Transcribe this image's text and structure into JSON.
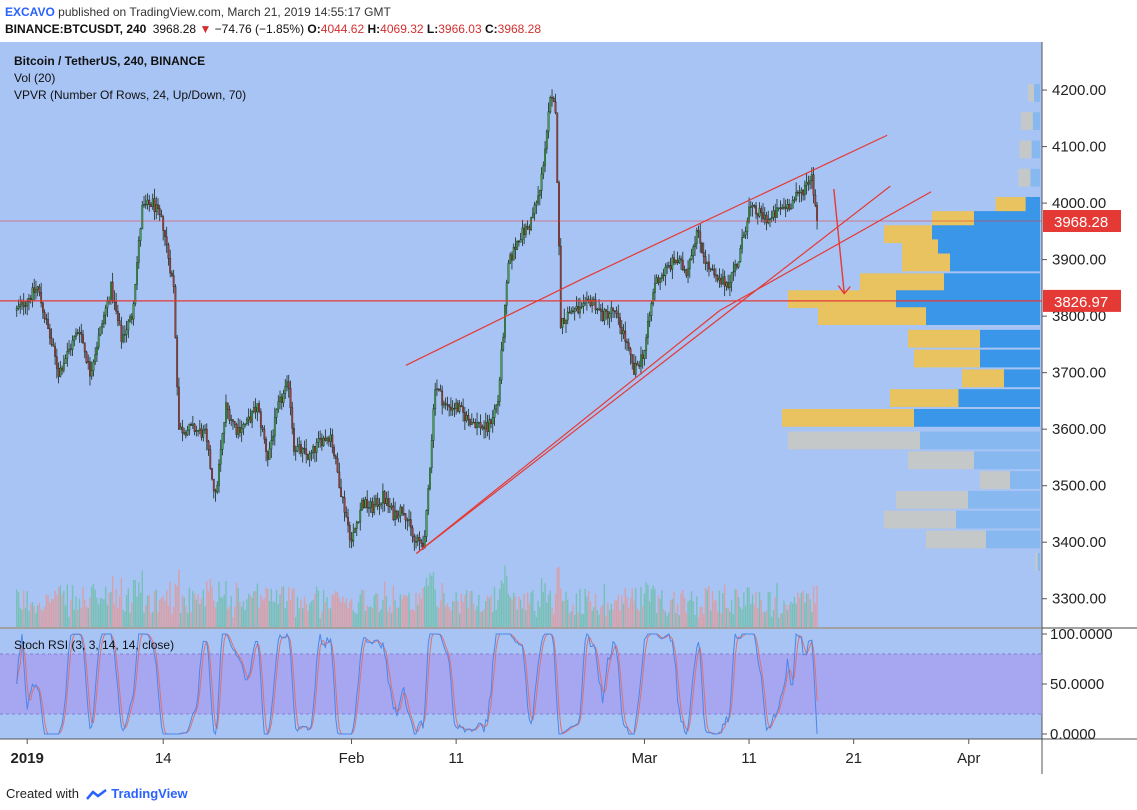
{
  "header": {
    "publisher": "EXCAVO",
    "published_text": "published on TradingView.com, March 21, 2019 14:55:17 GMT",
    "symbol": "BINANCE:BTCUSDT, 240",
    "last": "3968.28",
    "change_arrow": "▼",
    "change": "−74.76 (−1.85%)",
    "o_label": "O:",
    "o_val": "4044.62",
    "h_label": "H:",
    "h_val": "4069.32",
    "l_label": "L:",
    "l_val": "3966.03",
    "c_label": "C:",
    "c_val": "3968.28"
  },
  "legend": {
    "title": "Bitcoin / TetherUS, 240, BINANCE",
    "vol": "Vol (20)",
    "vpvr": "VPVR (Number Of Rows, 24, Up/Down, 70)",
    "stoch": "Stoch RSI (3, 3, 14, 14, close)"
  },
  "footer": {
    "created_with": "Created with",
    "brand": "TradingView"
  },
  "colors": {
    "background": "#a8c4f4",
    "up": "#3dac4a",
    "down": "#b23a3a",
    "trendline": "#e53935",
    "vpvr_up": "#3a96e8",
    "vpvr_down": "#e8c35f",
    "vpvr_up_outside": "#87b8f0",
    "vpvr_down_outside": "#c5c8c8",
    "rsi_band": "#a79cf0",
    "rsi_k": "#4a87e8",
    "rsi_d": "#e0706e"
  },
  "chart_data": {
    "type": "candlestick",
    "price_axis_ticks": [
      "4200.00",
      "4100.00",
      "4000.00",
      "3900.00",
      "3800.00",
      "3700.00",
      "3600.00",
      "3500.00",
      "3400.00",
      "3300.00"
    ],
    "price_ylim": [
      3250,
      4285
    ],
    "rsi_axis_ticks": [
      "100.0000",
      "50.0000",
      "0.0000"
    ],
    "rsi_ylim": [
      -5,
      105
    ],
    "rsi_band": [
      20,
      80
    ],
    "x_ticks": [
      {
        "label": "2019",
        "day": 1
      },
      {
        "label": "14",
        "day": 14
      },
      {
        "label": "Feb",
        "day": 32
      },
      {
        "label": "11",
        "day": 42
      },
      {
        "label": "Mar",
        "day": 60
      },
      {
        "label": "11",
        "day": 70
      },
      {
        "label": "21",
        "day": 80
      },
      {
        "label": "Apr",
        "day": 91
      }
    ],
    "x_domain_days": [
      -1.6,
      98.0
    ],
    "price_marks": [
      {
        "label": "3968.28",
        "value": 3968.28
      },
      {
        "label": "3826.97",
        "value": 3826.97
      }
    ],
    "anchors": [
      [
        0,
        3810
      ],
      [
        2,
        3850
      ],
      [
        4,
        3700
      ],
      [
        6,
        3780
      ],
      [
        7,
        3700
      ],
      [
        9,
        3850
      ],
      [
        10,
        3760
      ],
      [
        11,
        3800
      ],
      [
        12,
        3990
      ],
      [
        13,
        4000
      ],
      [
        14,
        3960
      ],
      [
        15,
        3850
      ],
      [
        15.5,
        3600
      ],
      [
        17,
        3600
      ],
      [
        18,
        3590
      ],
      [
        19,
        3480
      ],
      [
        20,
        3640
      ],
      [
        21,
        3600
      ],
      [
        22,
        3610
      ],
      [
        23,
        3640
      ],
      [
        24,
        3550
      ],
      [
        25,
        3640
      ],
      [
        26,
        3680
      ],
      [
        26.5,
        3570
      ],
      [
        28,
        3550
      ],
      [
        29,
        3580
      ],
      [
        30,
        3590
      ],
      [
        31,
        3490
      ],
      [
        32,
        3400
      ],
      [
        33,
        3470
      ],
      [
        34,
        3460
      ],
      [
        35,
        3480
      ],
      [
        36,
        3450
      ],
      [
        37,
        3460
      ],
      [
        38,
        3400
      ],
      [
        39,
        3400
      ],
      [
        40,
        3680
      ],
      [
        41,
        3640
      ],
      [
        42,
        3640
      ],
      [
        43,
        3620
      ],
      [
        44,
        3610
      ],
      [
        45,
        3600
      ],
      [
        46,
        3650
      ],
      [
        47,
        3890
      ],
      [
        48,
        3940
      ],
      [
        49,
        3960
      ],
      [
        50,
        4020
      ],
      [
        51,
        4180
      ],
      [
        51.5,
        4170
      ],
      [
        52,
        3790
      ],
      [
        53,
        3810
      ],
      [
        54,
        3810
      ],
      [
        55,
        3830
      ],
      [
        56,
        3800
      ],
      [
        57,
        3810
      ],
      [
        58,
        3770
      ],
      [
        59,
        3700
      ],
      [
        60,
        3740
      ],
      [
        61,
        3860
      ],
      [
        62,
        3880
      ],
      [
        63,
        3900
      ],
      [
        64,
        3880
      ],
      [
        65,
        3950
      ],
      [
        66,
        3890
      ],
      [
        67,
        3860
      ],
      [
        68,
        3860
      ],
      [
        69,
        3900
      ],
      [
        70,
        3990
      ],
      [
        71,
        3980
      ],
      [
        72,
        3970
      ],
      [
        73,
        3990
      ],
      [
        74,
        4000
      ],
      [
        75,
        4020
      ],
      [
        76,
        4050
      ],
      [
        76.5,
        3968
      ]
    ],
    "trend_lines": [
      {
        "day0": 38.2,
        "v0": 3380,
        "day1": 83.5,
        "v1": 4030
      },
      {
        "day0": 38.2,
        "v0": 3380,
        "day1": 67.2,
        "v1": 3810
      },
      {
        "day0": 67.2,
        "v0": 3810,
        "day1": 87.4,
        "v1": 4020
      },
      {
        "day0": 37.2,
        "v0": 3713,
        "day1": 54.3,
        "v1": 3868
      },
      {
        "day0": 54.3,
        "v0": 3868,
        "day1": 83.2,
        "v1": 4120
      }
    ],
    "arrow": {
      "day0": 78.1,
      "v0": 4025,
      "day1": 79.1,
      "v1": 3840
    },
    "vpvr": [
      {
        "price": 4195,
        "up": 5,
        "down": 5
      },
      {
        "price": 4145,
        "up": 6,
        "down": 10
      },
      {
        "price": 4095,
        "up": 7,
        "down": 10
      },
      {
        "price": 4045,
        "up": 8,
        "down": 10
      },
      {
        "price": 3995,
        "up": 12,
        "down": 25
      },
      {
        "price": 3970,
        "up": 55,
        "down": 35
      },
      {
        "price": 3945,
        "up": 90,
        "down": 40
      },
      {
        "price": 3920,
        "up": 85,
        "down": 30
      },
      {
        "price": 3895,
        "up": 75,
        "down": 40
      },
      {
        "price": 3860,
        "up": 80,
        "down": 70
      },
      {
        "price": 3830,
        "up": 120,
        "down": 90
      },
      {
        "price": 3800,
        "up": 95,
        "down": 90
      },
      {
        "price": 3760,
        "up": 50,
        "down": 60
      },
      {
        "price": 3725,
        "up": 50,
        "down": 55
      },
      {
        "price": 3690,
        "up": 30,
        "down": 35
      },
      {
        "price": 3655,
        "up": 68,
        "down": 57
      },
      {
        "price": 3620,
        "up": 105,
        "down": 110
      },
      {
        "price": 3580,
        "up": 100,
        "down": 110
      },
      {
        "price": 3545,
        "up": 55,
        "down": 55
      },
      {
        "price": 3510,
        "up": 25,
        "down": 25
      },
      {
        "price": 3475,
        "up": 60,
        "down": 60
      },
      {
        "price": 3440,
        "up": 70,
        "down": 60
      },
      {
        "price": 3405,
        "up": 45,
        "down": 50
      },
      {
        "price": 3365,
        "up": 2,
        "down": 2
      }
    ]
  }
}
